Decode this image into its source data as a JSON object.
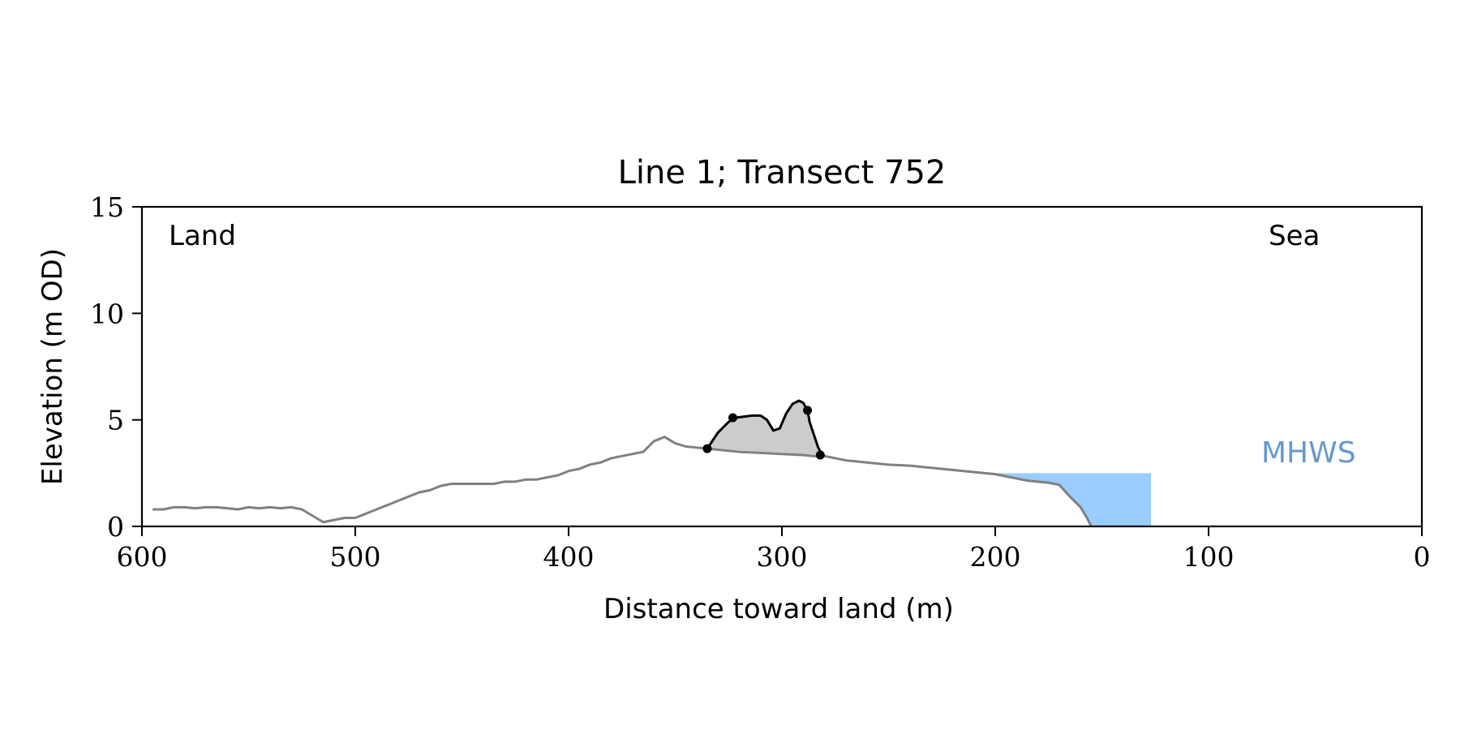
{
  "chart_data": {
    "type": "line",
    "title": "Line 1; Transect 752",
    "xlabel": "Distance toward land (m)",
    "ylabel": "Elevation (m OD)",
    "xlim": [
      600,
      0
    ],
    "ylim": [
      0,
      15
    ],
    "x_ticks": [
      600,
      500,
      400,
      300,
      200,
      100,
      0
    ],
    "y_ticks": [
      0,
      5,
      10,
      15
    ],
    "grid": false,
    "annotations": {
      "land": "Land",
      "sea": "Sea",
      "mhws": "MHWS"
    },
    "colors": {
      "profile": "#808080",
      "dune": "#000000",
      "dune_fill": "#cccccc",
      "water": "#99ccff",
      "mhws_label": "#6699cc"
    },
    "mhws_level": 2.5,
    "water_extent_x": [
      200,
      127
    ],
    "series": [
      {
        "role": "profile",
        "x": [
          595,
          590,
          585,
          580,
          575,
          570,
          565,
          560,
          555,
          550,
          545,
          540,
          535,
          530,
          525,
          520,
          515,
          510,
          505,
          500,
          495,
          490,
          485,
          480,
          475,
          470,
          465,
          460,
          455,
          450,
          445,
          440,
          435,
          430,
          425,
          420,
          415,
          410,
          405,
          400,
          395,
          390,
          385,
          380,
          375,
          370,
          365,
          360,
          355,
          350,
          345,
          340,
          335,
          330,
          320,
          310,
          300,
          290,
          285,
          280,
          275,
          270,
          265,
          260,
          250,
          240,
          230,
          220,
          210,
          200,
          195,
          190,
          185,
          180,
          175,
          170,
          165,
          160,
          157,
          155
        ],
        "y": [
          0.8,
          0.8,
          0.9,
          0.9,
          0.85,
          0.9,
          0.9,
          0.85,
          0.8,
          0.9,
          0.85,
          0.9,
          0.85,
          0.9,
          0.8,
          0.5,
          0.2,
          0.3,
          0.4,
          0.4,
          0.6,
          0.8,
          1.0,
          1.2,
          1.4,
          1.6,
          1.7,
          1.9,
          2.0,
          2.0,
          2.0,
          2.0,
          2.0,
          2.1,
          2.1,
          2.2,
          2.2,
          2.3,
          2.4,
          2.6,
          2.7,
          2.9,
          3.0,
          3.2,
          3.3,
          3.4,
          3.5,
          4.0,
          4.2,
          3.9,
          3.75,
          3.7,
          3.65,
          3.6,
          3.5,
          3.45,
          3.4,
          3.35,
          3.3,
          3.3,
          3.2,
          3.1,
          3.05,
          3.0,
          2.9,
          2.85,
          2.75,
          2.65,
          2.55,
          2.45,
          2.35,
          2.25,
          2.15,
          2.1,
          2.05,
          1.95,
          1.4,
          0.9,
          0.4,
          0.0
        ]
      },
      {
        "role": "dune",
        "x": [
          335,
          330,
          325,
          322,
          318,
          314,
          310,
          307,
          304,
          301,
          298,
          295,
          292,
          290,
          288,
          287,
          285,
          283,
          281
        ],
        "y": [
          3.65,
          4.4,
          4.9,
          5.1,
          5.15,
          5.2,
          5.2,
          5.0,
          4.5,
          4.6,
          5.3,
          5.75,
          5.9,
          5.8,
          5.45,
          4.9,
          4.3,
          3.7,
          3.35
        ]
      }
    ],
    "dune_markers": {
      "x": [
        335,
        323,
        288,
        282
      ],
      "y": [
        3.65,
        5.1,
        5.45,
        3.35
      ]
    }
  }
}
